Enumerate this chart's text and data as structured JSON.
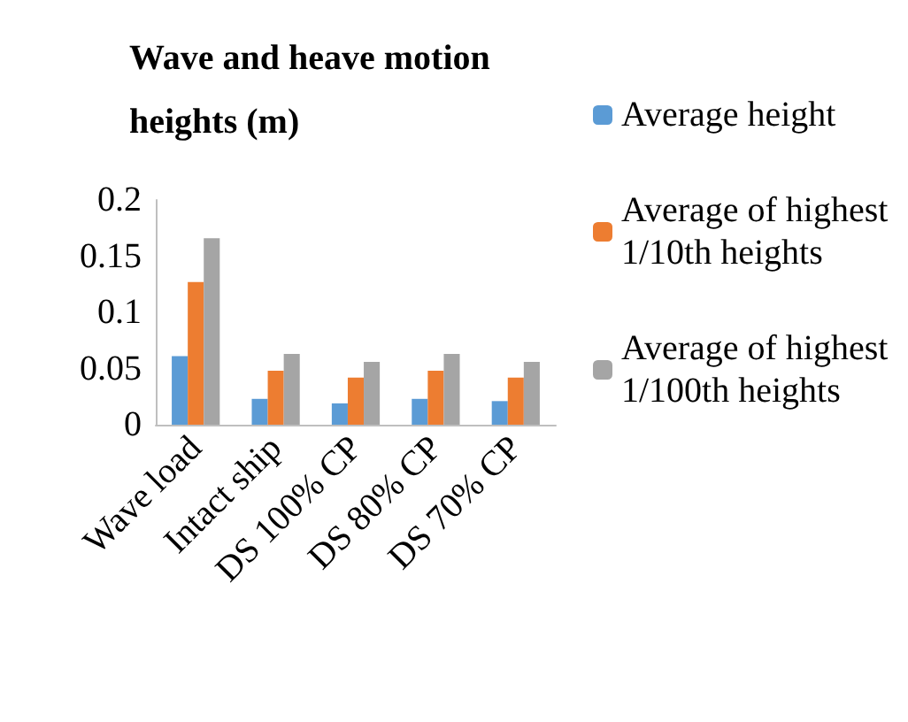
{
  "chart_data": {
    "type": "bar",
    "title": "Wave and heave motion heights (m)",
    "categories": [
      "Wave load",
      "Intact ship",
      "DS 100% CP",
      "DS 80% CP",
      "DS 70% CP"
    ],
    "series": [
      {
        "name": "Average height",
        "color": "#5b9bd5",
        "values": [
          0.061,
          0.023,
          0.019,
          0.023,
          0.021
        ]
      },
      {
        "name": "Average of highest 1/10th heights",
        "color": "#ed7d31",
        "values": [
          0.127,
          0.048,
          0.042,
          0.048,
          0.042
        ]
      },
      {
        "name": "Average of highest 1/100th heights",
        "color": "#a5a5a5",
        "values": [
          0.166,
          0.063,
          0.056,
          0.063,
          0.056
        ]
      }
    ],
    "ylim": [
      0,
      0.2
    ],
    "yticks": [
      0,
      0.05,
      0.1,
      0.15,
      0.2
    ],
    "grid": false,
    "legend": "right"
  }
}
